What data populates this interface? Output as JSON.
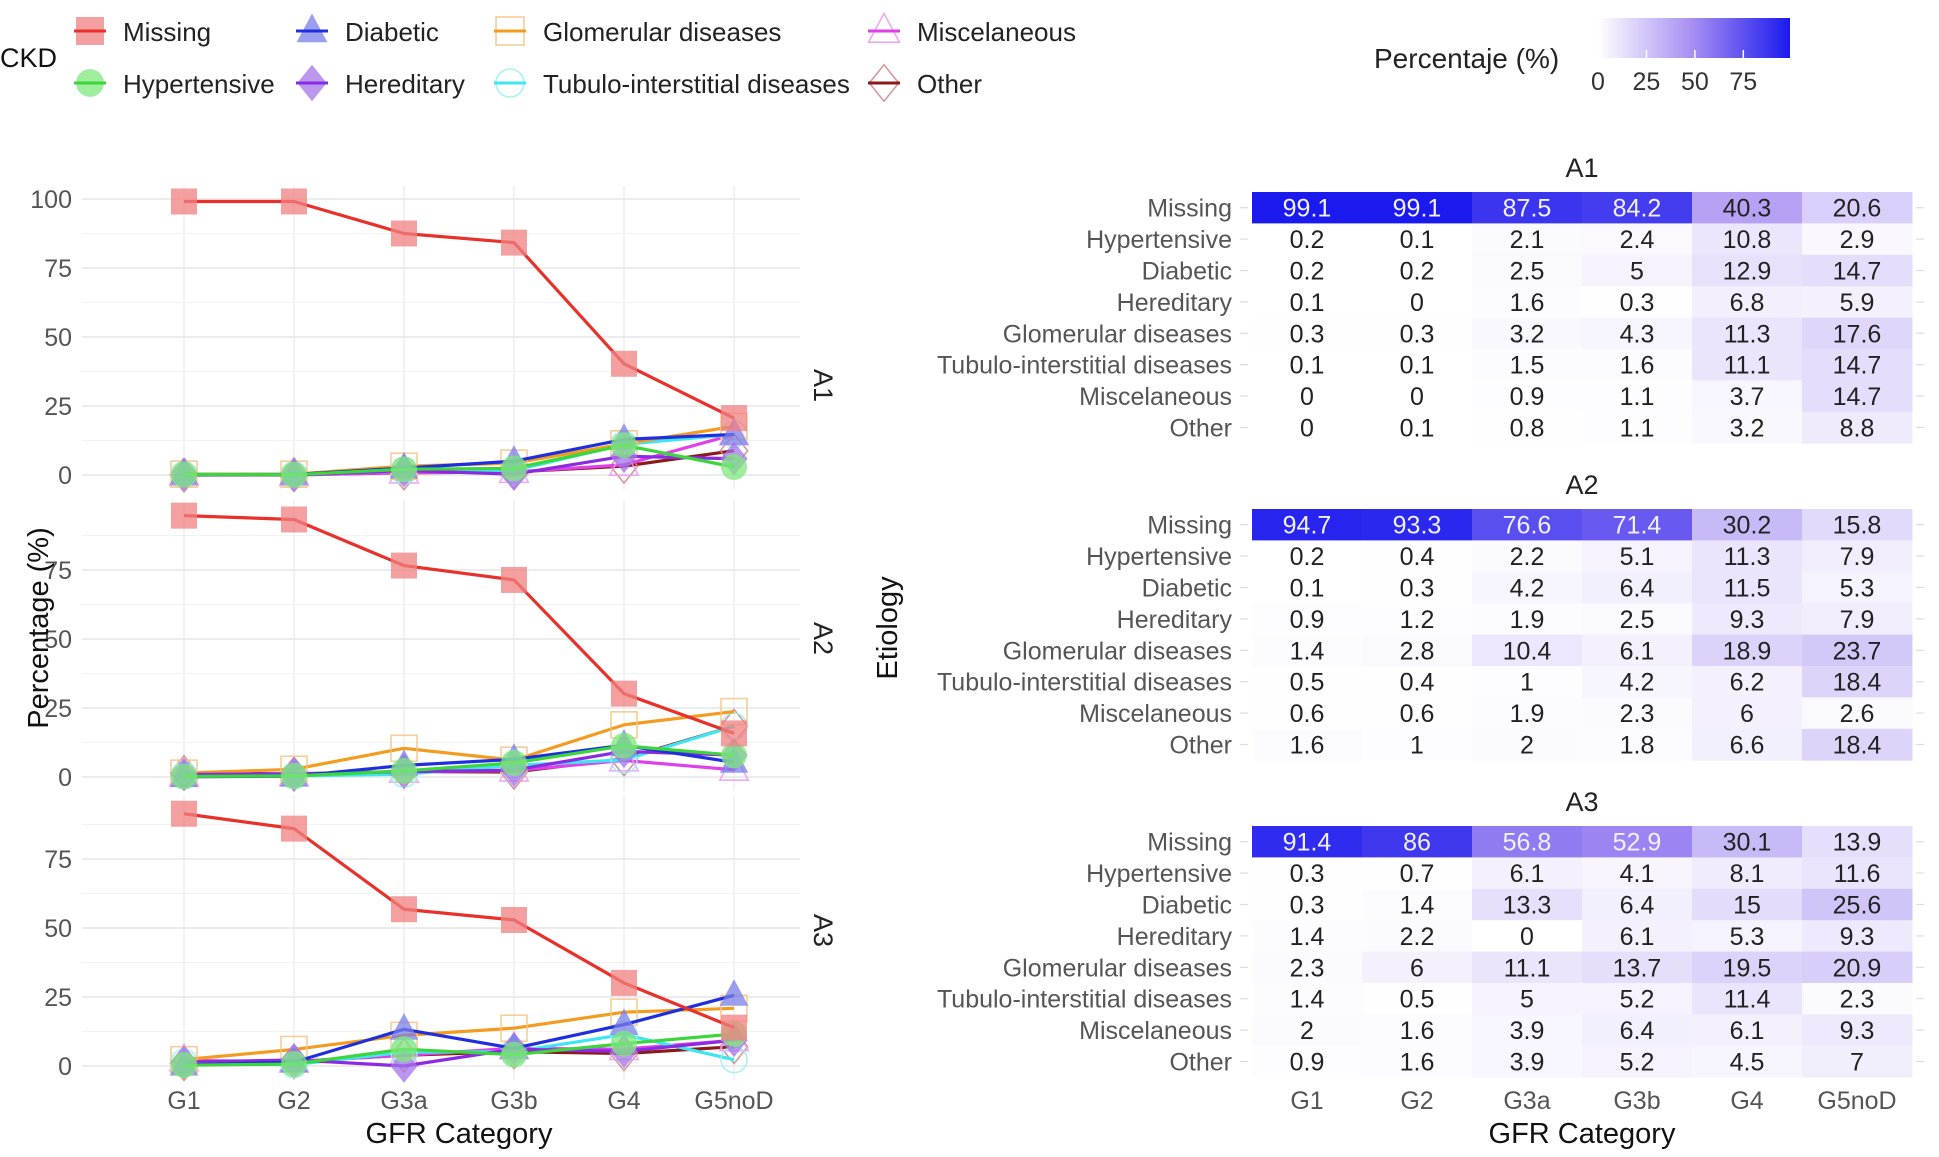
{
  "chart_data": [
    {
      "type": "line",
      "title": "",
      "xlabel": "GFR Category",
      "ylabel": "Percentage (%)",
      "categories": [
        "G1",
        "G2",
        "G3a",
        "G3b",
        "G4",
        "G5noD"
      ],
      "facets": [
        "A1",
        "A2",
        "A3"
      ],
      "facet_yticks": [
        [
          0,
          25,
          50,
          75,
          100
        ],
        [
          0,
          25,
          50,
          75
        ],
        [
          0,
          25,
          50,
          75
        ]
      ],
      "facet_ylim": [
        [
          0,
          100
        ],
        [
          0,
          94.7
        ],
        [
          0,
          91.4
        ]
      ],
      "grid": true,
      "legend": {
        "title": "CKD",
        "placement": "top-left",
        "entries": [
          {
            "name": "Missing",
            "color": "#e8312a",
            "marker_color": "#f08080",
            "marker": "square-filled"
          },
          {
            "name": "Hypertensive",
            "color": "#3bd63b",
            "marker_color": "#7de87d",
            "marker": "circle-filled"
          },
          {
            "name": "Diabetic",
            "color": "#1f2fe0",
            "marker_color": "#7b7de8",
            "marker": "triangle-filled"
          },
          {
            "name": "Hereditary",
            "color": "#8a2be2",
            "marker_color": "#a474e8",
            "marker": "diamond-filled"
          },
          {
            "name": "Glomerular diseases",
            "color": "#f39c1f",
            "marker_color": "#f5c48a",
            "marker": "square-open"
          },
          {
            "name": "Tubulo-interstitial diseases",
            "color": "#3ee6f0",
            "marker_color": "#9af0f5",
            "marker": "circle-open"
          },
          {
            "name": "Miscelaneous",
            "color": "#e040e8",
            "marker_color": "#ec9cf0",
            "marker": "triangle-open"
          },
          {
            "name": "Other",
            "color": "#8b1a1a",
            "marker_color": "#c98a8a",
            "marker": "diamond-open"
          }
        ]
      }
    },
    {
      "type": "heatmap",
      "title": "",
      "xlabel": "GFR Category",
      "ylabel": "Etiology",
      "categories": [
        "G1",
        "G2",
        "G3a",
        "G3b",
        "G4",
        "G5noD"
      ],
      "rows": [
        "Missing",
        "Hypertensive",
        "Diabetic",
        "Hereditary",
        "Glomerular diseases",
        "Tubulo-interstitial diseases",
        "Miscelaneous",
        "Other"
      ],
      "colorbar": {
        "title": "Percentaje (%)",
        "ticks": [
          0,
          25,
          50,
          75
        ],
        "range": [
          0,
          99.1
        ],
        "low_color": "#ffffff",
        "high_color": "#1a1aee",
        "placement": "top-right"
      },
      "facets": [
        {
          "name": "A1",
          "values": [
            [
              99.1,
              99.1,
              87.5,
              84.2,
              40.3,
              20.6
            ],
            [
              0.2,
              0.1,
              2.1,
              2.4,
              10.8,
              2.9
            ],
            [
              0.2,
              0.2,
              2.5,
              5,
              12.9,
              14.7
            ],
            [
              0.1,
              0,
              1.6,
              0.3,
              6.8,
              5.9
            ],
            [
              0.3,
              0.3,
              3.2,
              4.3,
              11.3,
              17.6
            ],
            [
              0.1,
              0.1,
              1.5,
              1.6,
              11.1,
              14.7
            ],
            [
              0,
              0,
              0.9,
              1.1,
              3.7,
              14.7
            ],
            [
              0,
              0.1,
              0.8,
              1.1,
              3.2,
              8.8
            ]
          ]
        },
        {
          "name": "A2",
          "values": [
            [
              94.7,
              93.3,
              76.6,
              71.4,
              30.2,
              15.8
            ],
            [
              0.2,
              0.4,
              2.2,
              5.1,
              11.3,
              7.9
            ],
            [
              0.1,
              0.3,
              4.2,
              6.4,
              11.5,
              5.3
            ],
            [
              0.9,
              1.2,
              1.9,
              2.5,
              9.3,
              7.9
            ],
            [
              1.4,
              2.8,
              10.4,
              6.1,
              18.9,
              23.7
            ],
            [
              0.5,
              0.4,
              1,
              4.2,
              6.2,
              18.4
            ],
            [
              0.6,
              0.6,
              1.9,
              2.3,
              6,
              2.6
            ],
            [
              1.6,
              1,
              2,
              1.8,
              6.6,
              18.4
            ]
          ]
        },
        {
          "name": "A3",
          "values": [
            [
              91.4,
              86,
              56.8,
              52.9,
              30.1,
              13.9
            ],
            [
              0.3,
              0.7,
              6.1,
              4.1,
              8.1,
              11.6
            ],
            [
              0.3,
              1.4,
              13.3,
              6.4,
              15,
              25.6
            ],
            [
              1.4,
              2.2,
              0,
              6.1,
              5.3,
              9.3
            ],
            [
              2.3,
              6,
              11.1,
              13.7,
              19.5,
              20.9
            ],
            [
              1.4,
              0.5,
              5,
              5.2,
              11.4,
              2.3
            ],
            [
              2,
              1.6,
              3.9,
              6.4,
              6.1,
              9.3
            ],
            [
              0.9,
              1.6,
              3.9,
              5.2,
              4.5,
              7
            ]
          ]
        }
      ]
    }
  ]
}
